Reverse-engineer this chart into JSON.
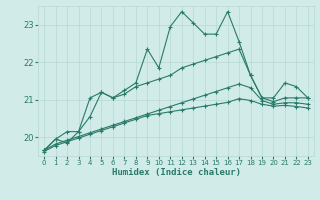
{
  "x": [
    0,
    1,
    2,
    3,
    4,
    5,
    6,
    7,
    8,
    9,
    10,
    11,
    12,
    13,
    14,
    15,
    16,
    17,
    18,
    19,
    20,
    21,
    22,
    23
  ],
  "line1": [
    19.65,
    19.95,
    19.85,
    20.15,
    21.05,
    21.2,
    21.05,
    21.25,
    21.45,
    22.35,
    21.85,
    22.95,
    23.35,
    23.05,
    22.75,
    22.75,
    23.35,
    22.55,
    21.65,
    21.05,
    21.05,
    21.45,
    21.35,
    21.05
  ],
  "line2": [
    19.65,
    19.95,
    20.15,
    20.15,
    20.55,
    21.2,
    21.05,
    21.15,
    21.35,
    21.45,
    21.55,
    21.65,
    21.85,
    21.95,
    22.05,
    22.15,
    22.25,
    22.35,
    21.65,
    21.05,
    20.95,
    21.05,
    21.05,
    21.05
  ],
  "line3": [
    19.65,
    19.82,
    19.92,
    20.02,
    20.12,
    20.22,
    20.32,
    20.42,
    20.52,
    20.62,
    20.72,
    20.82,
    20.92,
    21.02,
    21.12,
    21.22,
    21.32,
    21.42,
    21.32,
    20.98,
    20.88,
    20.92,
    20.92,
    20.88
  ],
  "line4": [
    19.62,
    19.78,
    19.88,
    19.98,
    20.08,
    20.18,
    20.28,
    20.38,
    20.48,
    20.58,
    20.63,
    20.68,
    20.73,
    20.78,
    20.83,
    20.88,
    20.93,
    21.03,
    20.98,
    20.88,
    20.83,
    20.85,
    20.82,
    20.78
  ],
  "line_color": "#2a7a6a",
  "bg_color": "#d0ebe8",
  "grid_color": "#b8d8d4",
  "xlabel": "Humidex (Indice chaleur)",
  "ylim": [
    19.5,
    23.5
  ],
  "xlim": [
    -0.5,
    23.5
  ],
  "yticks": [
    20,
    21,
    22,
    23
  ],
  "xticks": [
    0,
    1,
    2,
    3,
    4,
    5,
    6,
    7,
    8,
    9,
    10,
    11,
    12,
    13,
    14,
    15,
    16,
    17,
    18,
    19,
    20,
    21,
    22,
    23
  ]
}
